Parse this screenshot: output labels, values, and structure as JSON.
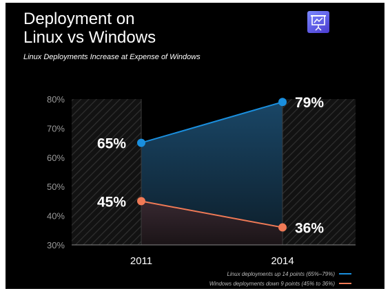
{
  "slide": {
    "title_line1": "Deployment on",
    "title_line2": "Linux vs Windows",
    "subtitle": "Linux Deployments Increase at Expense of Windows",
    "icon": "presentation-chart-icon"
  },
  "colors": {
    "background": "#000000",
    "linux": "#1a8fde",
    "windows": "#f07a56",
    "icon_bg": "#6d6cf0"
  },
  "chart_data": {
    "type": "line",
    "x": [
      "2011",
      "2014"
    ],
    "ylim": [
      30,
      80
    ],
    "yticks": [
      30,
      40,
      50,
      60,
      70,
      80
    ],
    "ytick_labels": [
      "30%",
      "40%",
      "50%",
      "60%",
      "70%",
      "80%"
    ],
    "grid": false,
    "legend_position": "bottom-right",
    "series": [
      {
        "legend": "Linux deployments up 14 points (65%–79%)",
        "values": [
          65,
          79
        ],
        "labels": [
          "65%",
          "79%"
        ],
        "color": "#1a8fde"
      },
      {
        "legend": "Windows deployments down 9 points (45% to 36%)",
        "values": [
          45,
          36
        ],
        "labels": [
          "45%",
          "36%"
        ],
        "color": "#f07a56"
      }
    ]
  }
}
